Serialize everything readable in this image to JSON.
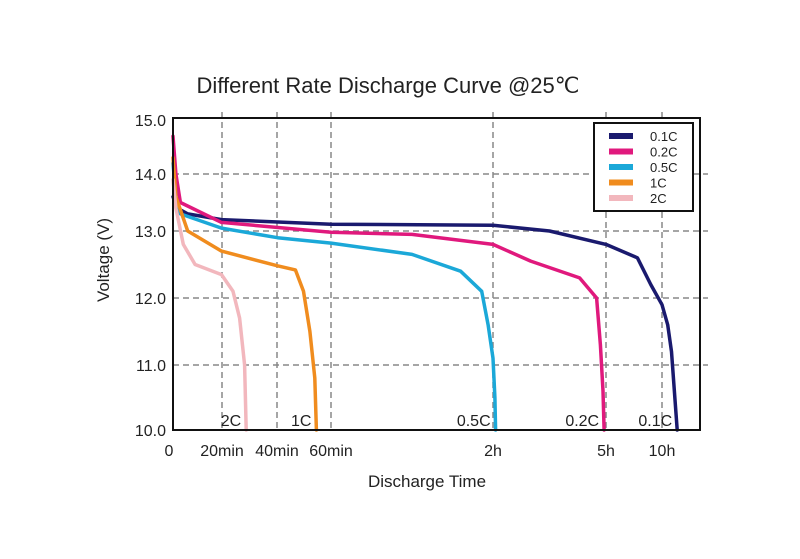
{
  "chart_data": {
    "type": "line",
    "title": "Different Rate Discharge Curve @25℃",
    "xlabel": "Discharge Time",
    "ylabel": "Voltage (V)",
    "ylim": [
      10.0,
      15.0
    ],
    "xlim_hours": [
      0,
      12
    ],
    "x_ticks": [
      {
        "value": 0,
        "label": "0"
      },
      {
        "value": 0.3333,
        "label": "20min"
      },
      {
        "value": 0.6667,
        "label": "40min"
      },
      {
        "value": 1,
        "label": "60min"
      },
      {
        "value": 2,
        "label": "2h"
      },
      {
        "value": 5,
        "label": "5h"
      },
      {
        "value": 10,
        "label": "10h"
      }
    ],
    "y_ticks": [
      {
        "value": 10,
        "label": "10.0"
      },
      {
        "value": 11,
        "label": "11.0"
      },
      {
        "value": 12,
        "label": "12.0"
      },
      {
        "value": 13,
        "label": "13.0"
      },
      {
        "value": 14,
        "label": "14.0"
      },
      {
        "value": 15,
        "label": "15.0"
      }
    ],
    "x_scale": "non-linear (piecewise between ticks)",
    "grid": true,
    "grid_style": "dashed",
    "legend_position": "top-right",
    "series": [
      {
        "name": "0.1C",
        "color": "#1a1a6e",
        "end_label": "0.1C",
        "x": [
          0,
          0.03,
          0.1,
          0.33,
          1,
          2,
          3.5,
          5,
          7.8,
          9,
          10,
          10.3,
          10.5,
          10.8
        ],
        "y": [
          13.6,
          13.4,
          13.3,
          13.2,
          13.12,
          13.1,
          13.0,
          12.8,
          12.6,
          12.2,
          11.9,
          11.6,
          11.2,
          10.0
        ]
      },
      {
        "name": "0.2C",
        "color": "#e0197d",
        "end_label": "0.2C",
        "x": [
          0,
          0.02,
          0.05,
          0.33,
          1,
          1.5,
          2,
          3,
          4.3,
          4.75,
          4.85,
          4.92,
          4.95
        ],
        "y": [
          14.7,
          14.0,
          13.5,
          13.15,
          12.98,
          12.95,
          12.8,
          12.55,
          12.3,
          12.0,
          11.3,
          10.6,
          10.0
        ]
      },
      {
        "name": "0.5C",
        "color": "#1ba8d8",
        "end_label": "0.5C",
        "x": [
          0,
          0.02,
          0.05,
          0.33,
          0.67,
          1,
          1.5,
          1.8,
          1.93,
          1.97,
          2.0,
          2.05,
          2.07
        ],
        "y": [
          14.2,
          13.6,
          13.3,
          13.05,
          12.9,
          12.82,
          12.65,
          12.4,
          12.1,
          11.6,
          11.1,
          10.5,
          10.0
        ]
      },
      {
        "name": "1C",
        "color": "#f08c1e",
        "end_label": "1C",
        "x": [
          0,
          0.02,
          0.1,
          0.33,
          0.67,
          0.78,
          0.83,
          0.87,
          0.9,
          0.91
        ],
        "y": [
          14.3,
          13.6,
          13.0,
          12.7,
          12.48,
          12.42,
          12.1,
          11.5,
          10.8,
          10.0
        ]
      },
      {
        "name": "2C",
        "color": "#f2b7bd",
        "end_label": "2C",
        "x": [
          0,
          0.02,
          0.07,
          0.15,
          0.33,
          0.4,
          0.44,
          0.47,
          0.48
        ],
        "y": [
          13.9,
          13.4,
          12.8,
          12.5,
          12.35,
          12.1,
          11.7,
          11.0,
          10.0
        ]
      }
    ]
  }
}
